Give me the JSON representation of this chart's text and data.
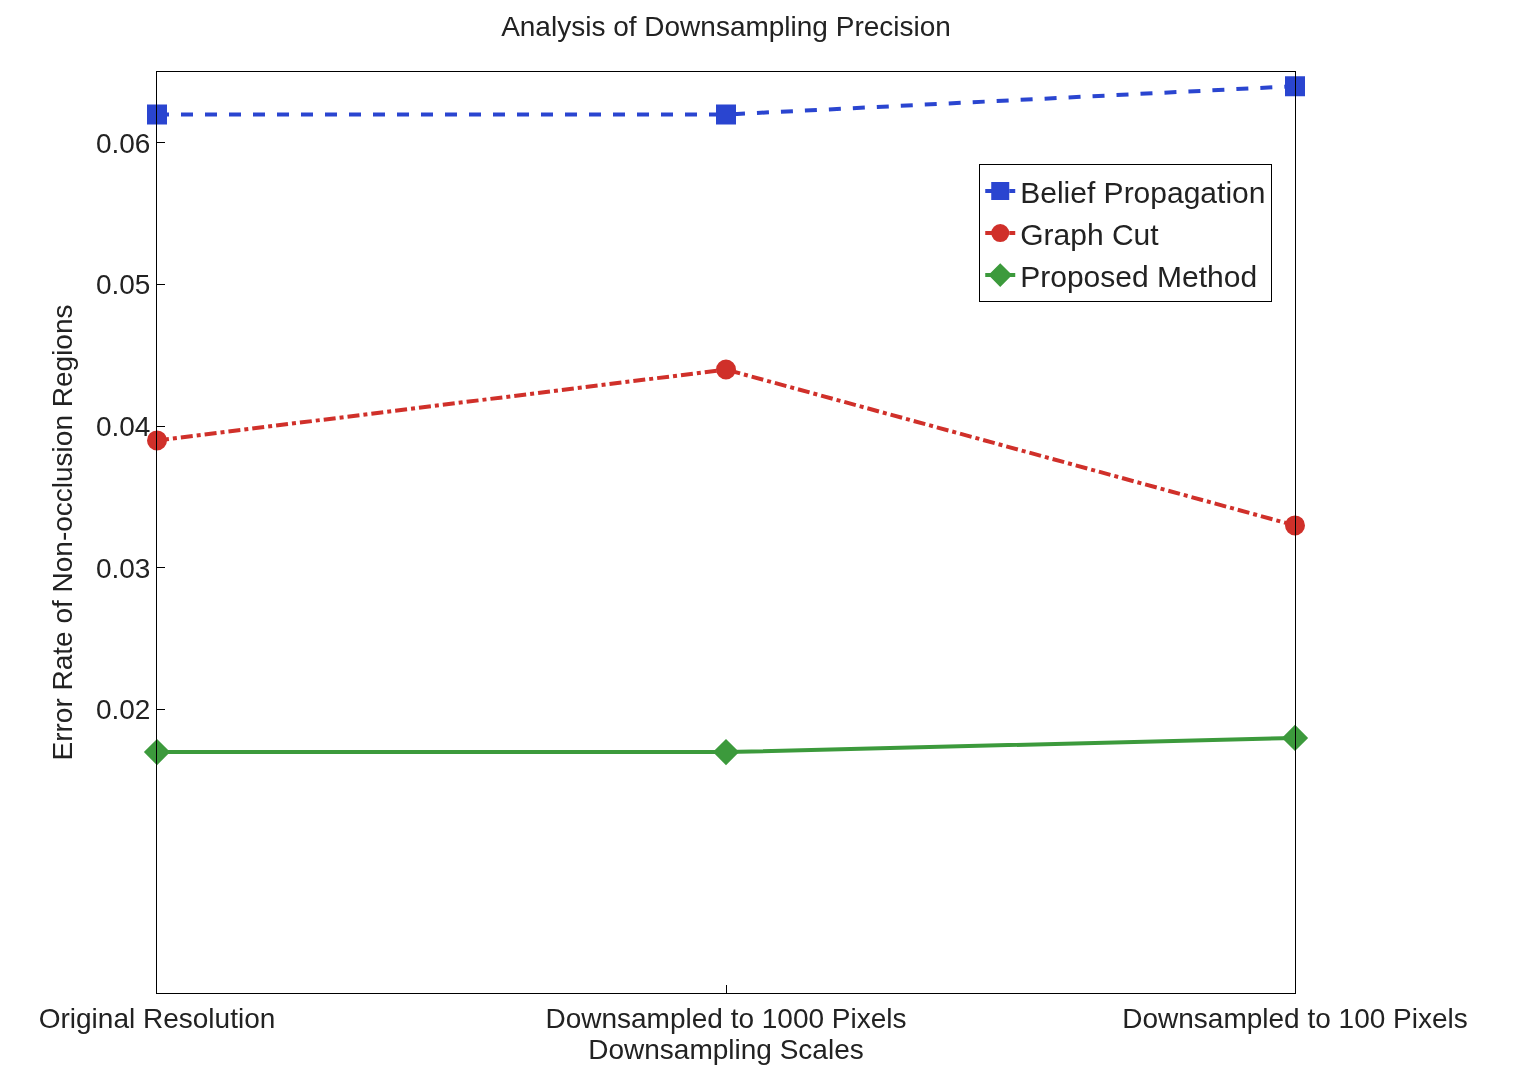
{
  "chart_data": {
    "type": "line",
    "title": "Analysis of Downsampling Precision",
    "xlabel": "Downsampling Scales",
    "ylabel": "Error Rate of Non-occlusion Regions",
    "categories": [
      "Original Resolution",
      "Downsampled to 1000 Pixels",
      "Downsampled to 100 Pixels"
    ],
    "series": [
      {
        "name": "Belief Propagation",
        "color": "#2a45d0",
        "values": [
          0.062,
          0.062,
          0.064
        ],
        "marker": "square",
        "line_style": "dashed"
      },
      {
        "name": "Graph Cut",
        "color": "#d0302a",
        "values": [
          0.039,
          0.044,
          0.033
        ],
        "marker": "circle",
        "line_style": "dashdot"
      },
      {
        "name": "Proposed Method",
        "color": "#3c9a3c",
        "values": [
          0.017,
          0.017,
          0.018
        ],
        "marker": "diamond",
        "line_style": "solid"
      }
    ],
    "ylim": [
      0,
      0.065
    ],
    "yticks": [
      0.02,
      0.03,
      0.04,
      0.05,
      0.06
    ],
    "legend": "top right"
  }
}
